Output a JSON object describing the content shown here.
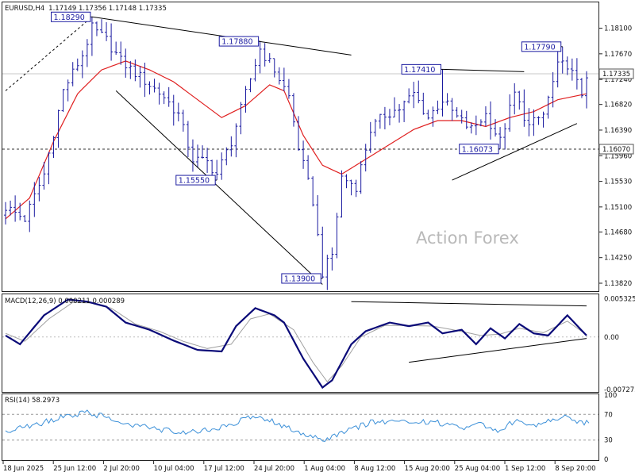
{
  "header": {
    "symbol": "EURUSD,H4",
    "ohlc": "1.17149 1.17356 1.17148 1.17335"
  },
  "watermark": "Action Forex",
  "colors": {
    "candle": "#1a1aa0",
    "ma": "#e02020",
    "macd": "#0a0a78",
    "signal": "#a0a0a0",
    "rsi": "#3a8fd8",
    "trendline": "#000000"
  },
  "price_axis": {
    "ticks": [
      "1.18100",
      "1.17670",
      "1.17240",
      "1.16820",
      "1.16390",
      "1.15960",
      "1.15530",
      "1.15100",
      "1.14680",
      "1.14250",
      "1.13820"
    ],
    "current_price": "1.17335",
    "marked_level": "1.16070"
  },
  "macd_panel": {
    "title": "MACD(12,26,9) 0.000211 0.000289",
    "ticks": [
      "0.005325",
      "0.00",
      "-0.007273"
    ]
  },
  "rsi_panel": {
    "title": "RSI(14) 58.2973",
    "ticks": [
      "100",
      "70",
      "30",
      "0"
    ]
  },
  "time_axis": {
    "labels": [
      "18 Jun 2025",
      "25 Jun 12:00",
      "2 Jul 20:00",
      "10 Jul 04:00",
      "17 Jul 12:00",
      "24 Jul 20:00",
      "1 Aug 04:00",
      "8 Aug 12:00",
      "15 Aug 20:00",
      "25 Aug 04:00",
      "1 Sep 12:00",
      "8 Sep 20:00"
    ]
  },
  "price_labels": [
    {
      "text": "1.18290",
      "price": 1.1829,
      "bar": 18
    },
    {
      "text": "1.17880",
      "price": 1.1788,
      "bar": 53
    },
    {
      "text": "1.15550",
      "price": 1.1555,
      "bar": 44
    },
    {
      "text": "1.13900",
      "price": 1.139,
      "bar": 66
    },
    {
      "text": "1.17410",
      "price": 1.1741,
      "bar": 91
    },
    {
      "text": "1.16073",
      "price": 1.16073,
      "bar": 103
    },
    {
      "text": "1.17790",
      "price": 1.1779,
      "bar": 116
    }
  ],
  "chart_data": [
    {
      "type": "candlestick",
      "title": "EURUSD,H4",
      "ohlc_note": "1.17149 1.17356 1.17148 1.17335",
      "ylim": [
        1.137,
        1.1852
      ],
      "x_time_labels": [
        "18 Jun 2025",
        "25 Jun 12:00",
        "2 Jul 20:00",
        "10 Jul 04:00",
        "17 Jul 12:00",
        "24 Jul 20:00",
        "1 Aug 04:00",
        "8 Aug 12:00",
        "15 Aug 20:00",
        "25 Aug 04:00",
        "1 Sep 12:00",
        "8 Sep 20:00"
      ],
      "close_anchors": [
        [
          0,
          1.151
        ],
        [
          4,
          1.149
        ],
        [
          8,
          1.1565
        ],
        [
          12,
          1.1705
        ],
        [
          16,
          1.1765
        ],
        [
          18,
          1.181
        ],
        [
          21,
          1.179
        ],
        [
          24,
          1.1755
        ],
        [
          27,
          1.1735
        ],
        [
          30,
          1.1715
        ],
        [
          33,
          1.1695
        ],
        [
          36,
          1.1665
        ],
        [
          39,
          1.159
        ],
        [
          42,
          1.1585
        ],
        [
          44,
          1.1565
        ],
        [
          47,
          1.162
        ],
        [
          50,
          1.17
        ],
        [
          53,
          1.1775
        ],
        [
          56,
          1.174
        ],
        [
          59,
          1.1695
        ],
        [
          61,
          1.161
        ],
        [
          64,
          1.152
        ],
        [
          66,
          1.14
        ],
        [
          68,
          1.143
        ],
        [
          70,
          1.156
        ],
        [
          73,
          1.1545
        ],
        [
          76,
          1.164
        ],
        [
          79,
          1.1665
        ],
        [
          82,
          1.1675
        ],
        [
          85,
          1.17
        ],
        [
          88,
          1.166
        ],
        [
          91,
          1.169
        ],
        [
          94,
          1.166
        ],
        [
          97,
          1.164
        ],
        [
          100,
          1.1665
        ],
        [
          103,
          1.162
        ],
        [
          106,
          1.17
        ],
        [
          109,
          1.1645
        ],
        [
          112,
          1.1665
        ],
        [
          115,
          1.1745
        ],
        [
          117,
          1.175
        ],
        [
          120,
          1.17
        ],
        [
          121,
          1.1733
        ]
      ],
      "ma_anchors": [
        [
          0,
          1.149
        ],
        [
          5,
          1.1525
        ],
        [
          10,
          1.162
        ],
        [
          15,
          1.17
        ],
        [
          20,
          1.174
        ],
        [
          25,
          1.1755
        ],
        [
          30,
          1.174
        ],
        [
          35,
          1.172
        ],
        [
          40,
          1.169
        ],
        [
          45,
          1.166
        ],
        [
          50,
          1.168
        ],
        [
          55,
          1.1715
        ],
        [
          58,
          1.1705
        ],
        [
          62,
          1.163
        ],
        [
          66,
          1.158
        ],
        [
          70,
          1.1565
        ],
        [
          75,
          1.159
        ],
        [
          80,
          1.1615
        ],
        [
          85,
          1.164
        ],
        [
          90,
          1.1655
        ],
        [
          95,
          1.1655
        ],
        [
          100,
          1.1645
        ],
        [
          105,
          1.166
        ],
        [
          110,
          1.167
        ],
        [
          115,
          1.169
        ],
        [
          121,
          1.17
        ]
      ],
      "hlines": [
        {
          "name": "current price",
          "y": 1.17335
        },
        {
          "name": "marked level",
          "y": 1.1607
        }
      ],
      "trendlines": [
        {
          "from": [
            0,
            1.1705
          ],
          "to": [
            18,
            1.1829
          ],
          "style": "dashed"
        },
        {
          "from": [
            18,
            1.1829
          ],
          "to": [
            72,
            1.1765
          ],
          "style": "solid"
        },
        {
          "from": [
            23,
            1.1705
          ],
          "to": [
            66,
            1.138
          ],
          "style": "solid"
        },
        {
          "from": [
            91,
            1.1741
          ],
          "to": [
            108,
            1.1737
          ],
          "style": "solid"
        },
        {
          "from": [
            93,
            1.1555
          ],
          "to": [
            119,
            1.165
          ],
          "style": "solid"
        }
      ],
      "labels": [
        "1.18290",
        "1.17880",
        "1.15550",
        "1.13900",
        "1.17410",
        "1.16073",
        "1.17790"
      ]
    },
    {
      "type": "line",
      "title": "MACD(12,26,9) 0.000211 0.000289",
      "ylim": [
        -0.0075,
        0.0058
      ],
      "series": [
        {
          "name": "MACD",
          "anchors": [
            [
              0,
              0.0002
            ],
            [
              3,
              -0.001
            ],
            [
              8,
              0.003
            ],
            [
              13,
              0.0052
            ],
            [
              17,
              0.0049
            ],
            [
              21,
              0.0042
            ],
            [
              25,
              0.002
            ],
            [
              30,
              0.001
            ],
            [
              35,
              -0.0005
            ],
            [
              40,
              -0.0018
            ],
            [
              45,
              -0.002
            ],
            [
              48,
              0.0015
            ],
            [
              52,
              0.004
            ],
            [
              56,
              0.003
            ],
            [
              58,
              0.002
            ],
            [
              62,
              -0.003
            ],
            [
              66,
              -0.007
            ],
            [
              68,
              -0.006
            ],
            [
              72,
              -0.001
            ],
            [
              75,
              0.0008
            ],
            [
              80,
              0.002
            ],
            [
              84,
              0.0015
            ],
            [
              88,
              0.002
            ],
            [
              91,
              0.0005
            ],
            [
              95,
              0.001
            ],
            [
              98,
              -0.001
            ],
            [
              101,
              0.0012
            ],
            [
              104,
              -0.0002
            ],
            [
              107,
              0.0018
            ],
            [
              110,
              0.0005
            ],
            [
              113,
              0.0002
            ],
            [
              117,
              0.003
            ],
            [
              121,
              0.0002
            ]
          ]
        },
        {
          "name": "Signal",
          "anchors": [
            [
              0,
              0.0005
            ],
            [
              4,
              -0.0006
            ],
            [
              9,
              0.0025
            ],
            [
              14,
              0.0048
            ],
            [
              18,
              0.0047
            ],
            [
              22,
              0.004
            ],
            [
              27,
              0.0018
            ],
            [
              32,
              0.0008
            ],
            [
              37,
              -0.0006
            ],
            [
              42,
              -0.0016
            ],
            [
              47,
              -0.001
            ],
            [
              51,
              0.0025
            ],
            [
              55,
              0.0032
            ],
            [
              60,
              0.001
            ],
            [
              64,
              -0.0035
            ],
            [
              67,
              -0.0062
            ],
            [
              70,
              -0.004
            ],
            [
              74,
              0.0
            ],
            [
              79,
              0.0016
            ],
            [
              84,
              0.0016
            ],
            [
              89,
              0.0015
            ],
            [
              94,
              0.0009
            ],
            [
              99,
              0.0002
            ],
            [
              103,
              0.0004
            ],
            [
              107,
              0.0012
            ],
            [
              112,
              0.0006
            ],
            [
              117,
              0.0022
            ],
            [
              121,
              0.0003
            ]
          ]
        }
      ],
      "trendlines": [
        {
          "from": [
            72,
            0.0049
          ],
          "to": [
            121,
            0.0043
          ]
        },
        {
          "from": [
            84,
            -0.0035
          ],
          "to": [
            121,
            -0.0002
          ]
        }
      ]
    },
    {
      "type": "line",
      "title": "RSI(14) 58.2973",
      "ylim": [
        0,
        100
      ],
      "levels": [
        70,
        30
      ],
      "series": [
        {
          "name": "RSI",
          "anchors": [
            [
              0,
              45
            ],
            [
              6,
              52
            ],
            [
              12,
              68
            ],
            [
              17,
              72
            ],
            [
              21,
              66
            ],
            [
              26,
              55
            ],
            [
              31,
              48
            ],
            [
              36,
              42
            ],
            [
              41,
              45
            ],
            [
              46,
              52
            ],
            [
              51,
              65
            ],
            [
              55,
              60
            ],
            [
              59,
              48
            ],
            [
              63,
              38
            ],
            [
              67,
              30
            ],
            [
              71,
              45
            ],
            [
              76,
              57
            ],
            [
              81,
              58
            ],
            [
              86,
              60
            ],
            [
              91,
              56
            ],
            [
              95,
              48
            ],
            [
              99,
              55
            ],
            [
              103,
              45
            ],
            [
              106,
              60
            ],
            [
              110,
              52
            ],
            [
              114,
              62
            ],
            [
              117,
              70
            ],
            [
              119,
              57
            ],
            [
              121,
              58
            ]
          ]
        }
      ]
    }
  ]
}
